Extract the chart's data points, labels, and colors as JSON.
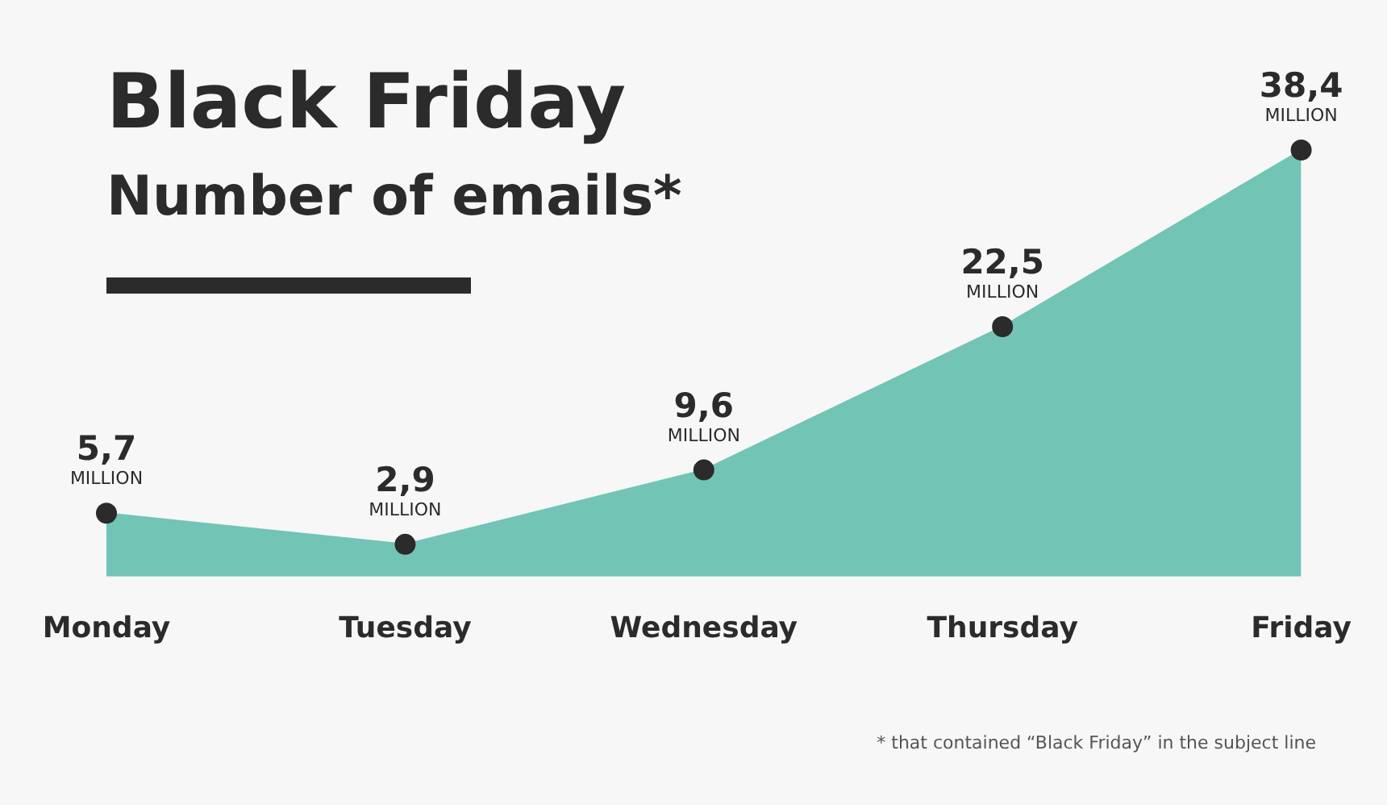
{
  "chart_data": {
    "type": "area",
    "title": "Black Friday",
    "subtitle": "Number of emails*",
    "categories": [
      "Monday",
      "Tuesday",
      "Wednesday",
      "Thursday",
      "Friday"
    ],
    "values": [
      5.7,
      2.9,
      9.6,
      22.5,
      38.4
    ],
    "value_labels": [
      "5,7\nMILLION",
      "2,9\nMILLION",
      "9,6\nMILLION",
      "22,5\nMILLION",
      "38,4\nMILLION"
    ],
    "color": "#72c4b4",
    "marker": "circle",
    "tick_labels": "x",
    "grid": false,
    "legend": false,
    "annotations": [
      "* that contained “Black Friday” in the subject line"
    ]
  }
}
